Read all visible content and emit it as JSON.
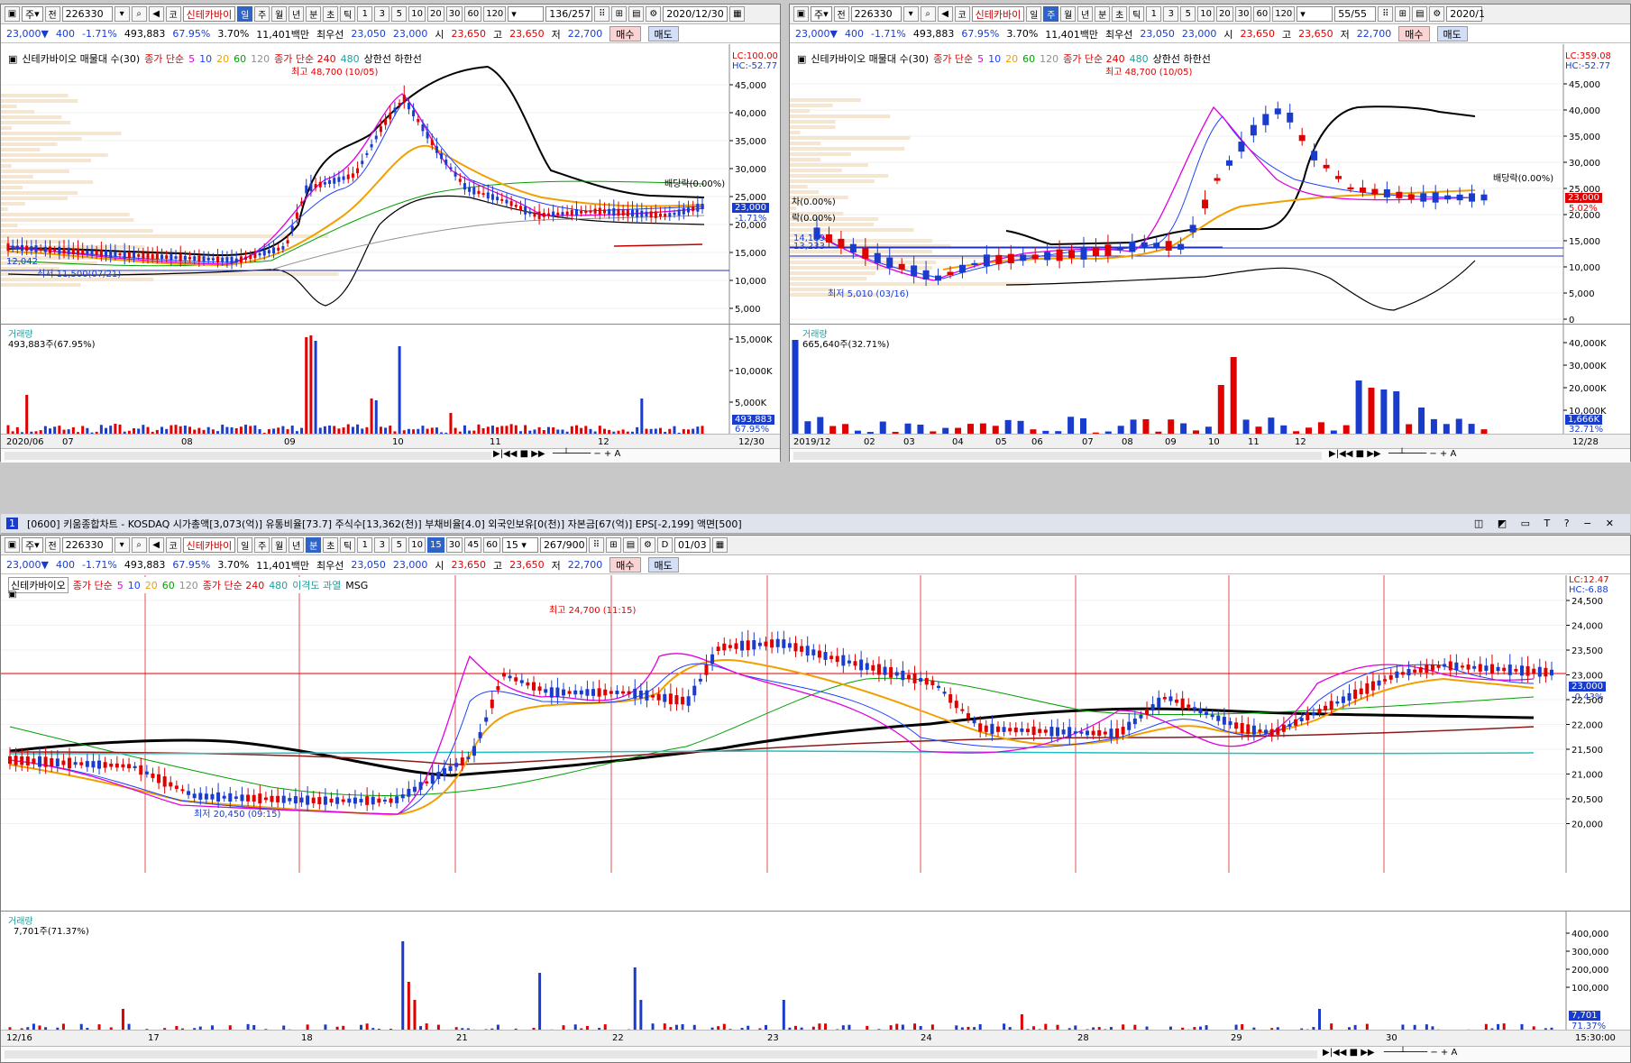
{
  "code": "226330",
  "name": "신테카바이",
  "name_full": "신테카바이오",
  "quote": {
    "price": "23,000",
    "arrow": "▼",
    "change": "400",
    "pct": "-1.71%",
    "volume": "493,883",
    "turnover": "67.95%",
    "rate": "3.70%",
    "amount": "11,401백만",
    "pref_label": "최우선",
    "ask": "23,050",
    "bid": "23,000",
    "open_label": "시",
    "open": "23,650",
    "high_label": "고",
    "high": "23,650",
    "low_label": "저",
    "low": "22,700",
    "buy": "매수",
    "sell": "매도"
  },
  "toolbar": {
    "jong": "주",
    "jeon": "전",
    "ko": "코",
    "periods_short": [
      "일",
      "주",
      "월",
      "년",
      "분",
      "초",
      "틱"
    ],
    "nums": [
      "1",
      "3",
      "5",
      "10",
      "20",
      "30",
      "60",
      "120"
    ]
  },
  "win1": {
    "count": "136/257",
    "date": "2020/12/30",
    "selected": "일",
    "legend": {
      "title": "신테카바이오 매물대 수(30)",
      "ma": "종가 단순",
      "ma_vals": [
        "5",
        "10",
        "20",
        "60",
        "120"
      ],
      "ma_colors": [
        "#e000e0",
        "#2040ff",
        "#f0a000",
        "#00a000",
        "#909090"
      ],
      "long": "종가 단순 240",
      "long2": "480",
      "band": "상한선 하한선"
    },
    "lc": "LC:100.00",
    "hc": "HC:-52.77",
    "hi_note": "최고 48,700 (10/05)",
    "lo_note": "최저 11,500(07/21)",
    "lo_val": "12,042",
    "div": "배당락(0.00%)",
    "cur_price": "23,000",
    "cur_pct": "-1.71%",
    "yticks": [
      "45,000",
      "40,000",
      "35,000",
      "30,000",
      "25,000",
      "20,000",
      "15,000",
      "10,000",
      "5,000"
    ],
    "vol_label": "거래량",
    "vol_val": "493,883주(67.95%)",
    "vol_ticks": [
      "15,000K",
      "10,000K",
      "5,000K"
    ],
    "vol_cur": "493,883",
    "vol_cur2": "67.95%",
    "xlabels": [
      "2020/06",
      "07",
      "08",
      "09",
      "10",
      "11",
      "12"
    ],
    "end": "12/30"
  },
  "win2": {
    "count": "55/55",
    "date": "2020/1",
    "selected": "주",
    "legend": {
      "title": "신테카바이오 매물대 수(30)",
      "ma": "종가 단순",
      "ma_vals": [
        "5",
        "10",
        "20",
        "60",
        "120"
      ],
      "long": "종가 단순 240",
      "long2": "480",
      "band": "상한선 하한선"
    },
    "lc": "LC:359.08",
    "hc": "HC:-52.77",
    "hi_note": "최고 48,700 (10/05)",
    "lo_note": "최저 5,010 (03/16)",
    "div": "배당락(0.00%)",
    "div2": "차(0.00%)",
    "div3": "락(0.00%)",
    "val14": "14,189",
    "val13": "13,233",
    "cur_price": "23,000",
    "cur_pct": "5.02%",
    "yticks": [
      "45,000",
      "40,000",
      "35,000",
      "30,000",
      "25,000",
      "20,000",
      "15,000",
      "10,000",
      "5,000",
      "0"
    ],
    "vol_label": "거래량",
    "vol_val": "665,640주(32.71%)",
    "vol_ticks": [
      "40,000K",
      "30,000K",
      "20,000K",
      "10,000K"
    ],
    "vol_cur": "1,666K",
    "vol_cur2": "32.71%",
    "xlabels": [
      "2019/12",
      "02",
      "03",
      "04",
      "05",
      "06",
      "07",
      "08",
      "09",
      "10",
      "11",
      "12"
    ],
    "end": "12/28"
  },
  "win3": {
    "title": "[0600] 키움종합차트 - KOSDAQ 시가총액[3,073(억)] 유통비율[73.7] 주식수[13,362(천)] 부채비율[4.0] 외국인보유[0(천)] 자본금[67(억)] EPS[-2,199] 액면[500]",
    "count": "267/900",
    "date": "01/03",
    "selected": "분",
    "min": "15",
    "mins": [
      "1",
      "3",
      "5",
      "10",
      "15",
      "30",
      "45",
      "60"
    ],
    "legend": {
      "title": "신테카바이오",
      "ma": "종가 단순",
      "ma_vals": [
        "5",
        "10",
        "20",
        "60",
        "120"
      ],
      "long": "종가 단순 240",
      "long2": "480",
      "disp": "이격도 과열",
      "msg": "MSG"
    },
    "lc": "LC:12.47",
    "hc": "HC:-6.88",
    "hi_note": "최고 24,700 (11:15)",
    "lo_note": "최저 20,450 (09:15)",
    "cur_price": "23,000",
    "cur_pct": "-0.43%",
    "yticks": [
      "24,500",
      "24,000",
      "23,500",
      "23,000",
      "22,500",
      "22,000",
      "21,500",
      "21,000",
      "20,500",
      "20,000"
    ],
    "vol_label": "거래량",
    "vol_val": "7,701주(71.37%)",
    "vol_ticks": [
      "400,000",
      "300,000",
      "200,000",
      "100,000"
    ],
    "vol_cur": "7,701",
    "vol_cur2": "71.37%",
    "xlabels": [
      "12/16",
      "17",
      "18",
      "21",
      "22",
      "23",
      "24",
      "28",
      "29",
      "30"
    ],
    "end": "15:30:00"
  }
}
